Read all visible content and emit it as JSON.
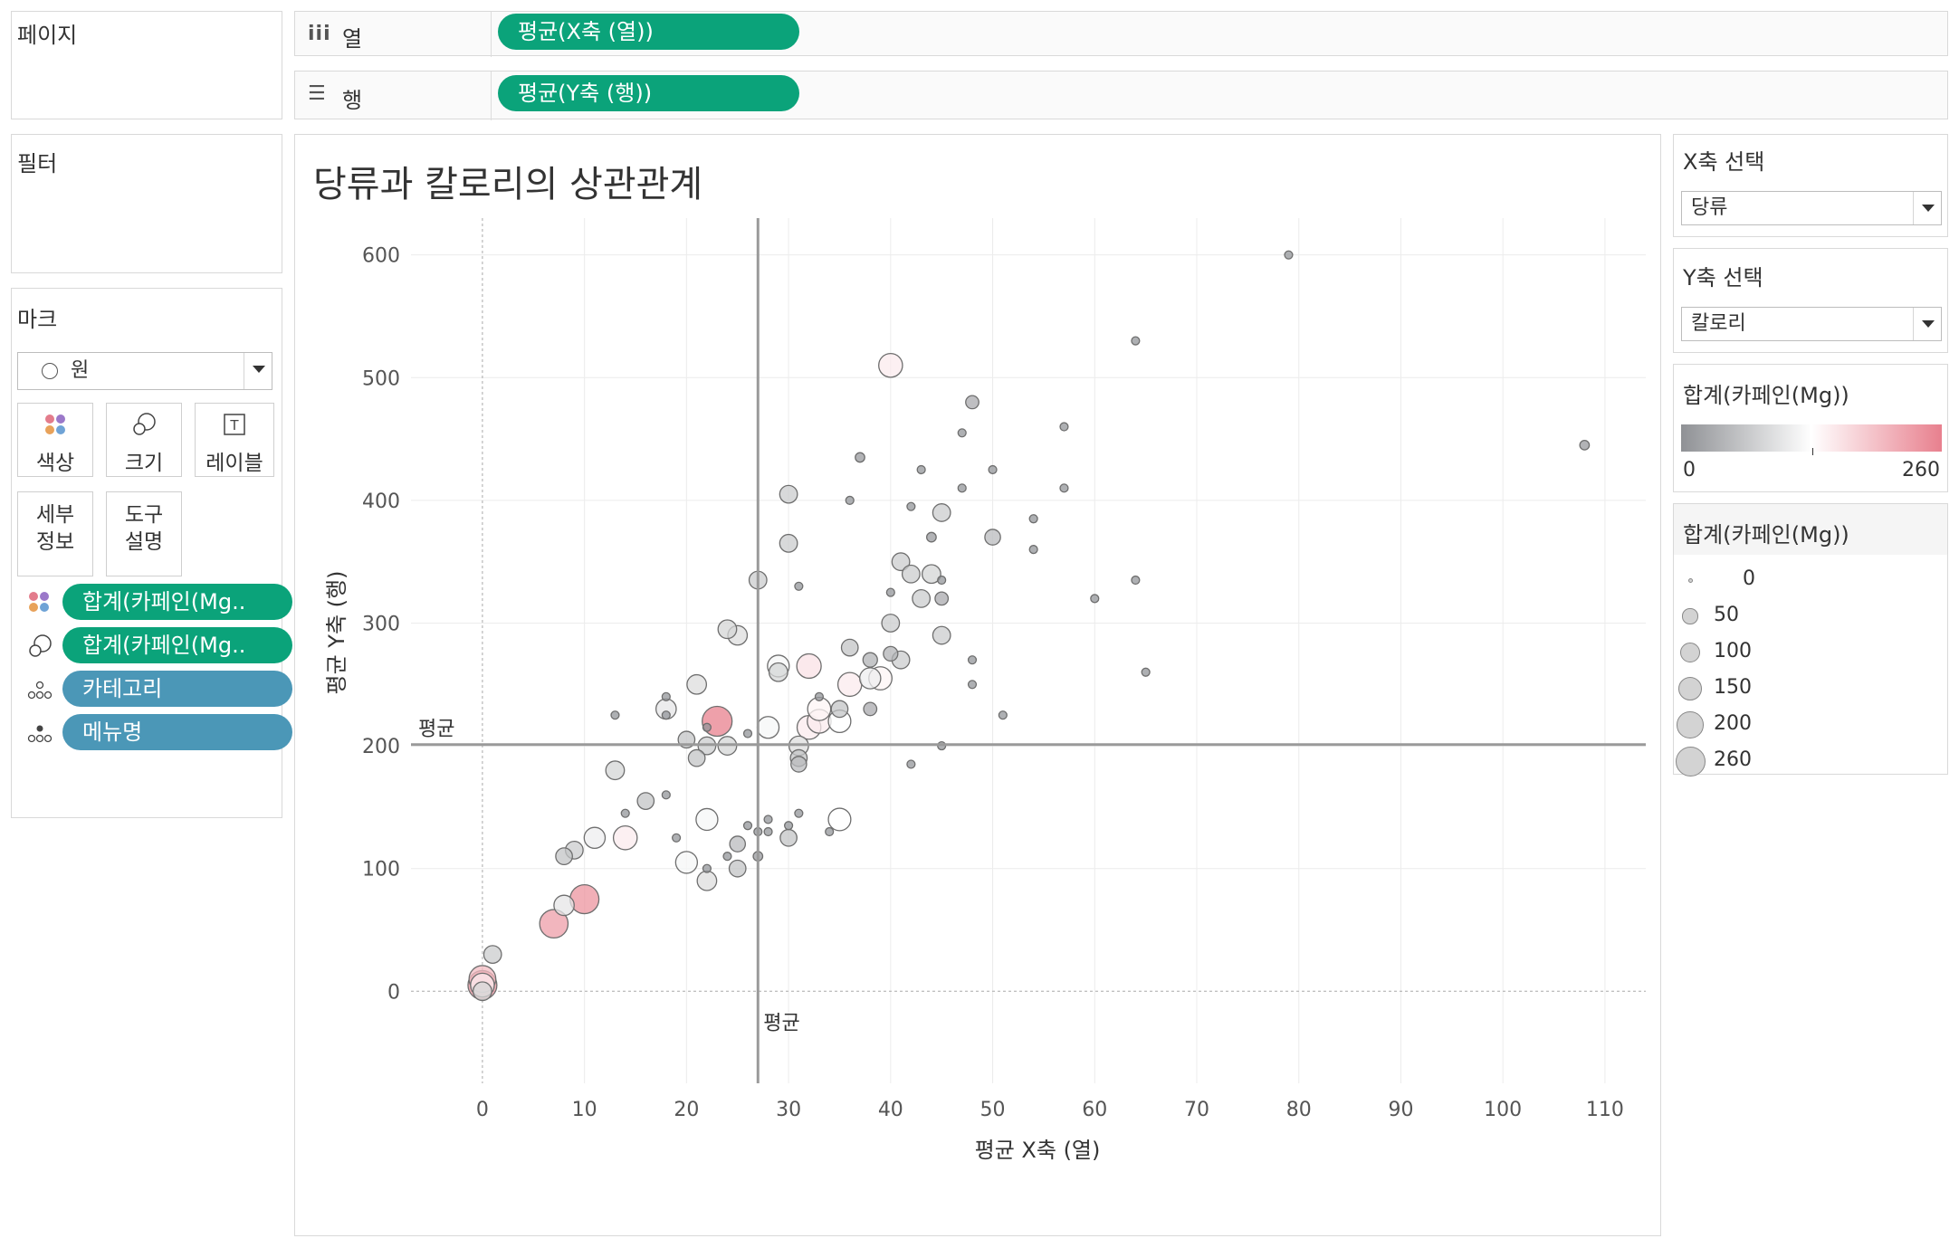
{
  "shelves": {
    "pages_label": "페이지",
    "columns": {
      "label": "열",
      "pill": "평균(X축 (열))"
    },
    "rows": {
      "label": "행",
      "pill": "평균(Y축 (행))"
    },
    "filters_label": "필터"
  },
  "marks": {
    "title": "마크",
    "type": "원",
    "buttons": [
      "색상",
      "크기",
      "레이블",
      "세부\n정보",
      "도구\n설명"
    ],
    "pills": [
      {
        "icon": "color-dots-icon",
        "label": "합계(카페인(Mg..",
        "color": "#0ba37a"
      },
      {
        "icon": "size-icon",
        "label": "합계(카페인(Mg..",
        "color": "#0ba37a"
      },
      {
        "icon": "detail-dots-icon",
        "label": "카테고리",
        "color": "#4b97b7"
      },
      {
        "icon": "detail-dots-icon",
        "label": "메뉴명",
        "color": "#4b97b7"
      }
    ]
  },
  "right_panel": {
    "x_select": {
      "title": "X축 선택",
      "value": "당류"
    },
    "y_select": {
      "title": "Y축 선택",
      "value": "칼로리"
    },
    "color_legend": {
      "title": "합계(카페인(Mg))",
      "min": "0",
      "max": "260",
      "colors": [
        "#8f9195",
        "#ffffff",
        "#e8808e"
      ]
    },
    "size_legend": {
      "title": "합계(카페인(Mg))",
      "items": [
        "0",
        "50",
        "100",
        "150",
        "200",
        "260"
      ]
    }
  },
  "chart_data": {
    "type": "scatter",
    "title": "당류과 칼로리의 상관관계",
    "xlabel": "평균 X축 (열)",
    "ylabel": "평균 Y축 (행)",
    "xlim": [
      -7,
      114
    ],
    "ylim": [
      -75,
      630
    ],
    "xticks": [
      "0",
      "10",
      "20",
      "30",
      "40",
      "50",
      "60",
      "70",
      "80",
      "90",
      "100",
      "110"
    ],
    "yticks": [
      "0",
      "100",
      "200",
      "300",
      "400",
      "500",
      "600"
    ],
    "grid": true,
    "reference_lines": {
      "x": 27,
      "y": 201,
      "label": "평균"
    },
    "points": [
      [
        0,
        5,
        240
      ],
      [
        0,
        10,
        200
      ],
      [
        0,
        5,
        150
      ],
      [
        0,
        0,
        80
      ],
      [
        1,
        30,
        70
      ],
      [
        7,
        55,
        230
      ],
      [
        8,
        70,
        100
      ],
      [
        8,
        110,
        60
      ],
      [
        9,
        115,
        70
      ],
      [
        10,
        75,
        240
      ],
      [
        11,
        125,
        110
      ],
      [
        13,
        225,
        5
      ],
      [
        13,
        180,
        80
      ],
      [
        14,
        125,
        150
      ],
      [
        14,
        145,
        5
      ],
      [
        16,
        155,
        60
      ],
      [
        18,
        160,
        5
      ],
      [
        18,
        230,
        100
      ],
      [
        18,
        240,
        5
      ],
      [
        18,
        225,
        5
      ],
      [
        19,
        125,
        5
      ],
      [
        20,
        105,
        120
      ],
      [
        20,
        205,
        60
      ],
      [
        21,
        250,
        90
      ],
      [
        21,
        190,
        60
      ],
      [
        22,
        200,
        70
      ],
      [
        22,
        215,
        5
      ],
      [
        23,
        220,
        260
      ],
      [
        22,
        140,
        120
      ],
      [
        22,
        90,
        90
      ],
      [
        22,
        100,
        5
      ],
      [
        24,
        295,
        80
      ],
      [
        24,
        110,
        5
      ],
      [
        24,
        200,
        80
      ],
      [
        25,
        290,
        90
      ],
      [
        25,
        100,
        60
      ],
      [
        25,
        120,
        50
      ],
      [
        26,
        135,
        5
      ],
      [
        26,
        210,
        5
      ],
      [
        27,
        110,
        10
      ],
      [
        27,
        130,
        5
      ],
      [
        27,
        335,
        70
      ],
      [
        28,
        215,
        120
      ],
      [
        28,
        140,
        5
      ],
      [
        28,
        130,
        5
      ],
      [
        29,
        265,
        120
      ],
      [
        29,
        260,
        80
      ],
      [
        30,
        125,
        60
      ],
      [
        30,
        135,
        5
      ],
      [
        30,
        365,
        70
      ],
      [
        30,
        405,
        70
      ],
      [
        31,
        330,
        5
      ],
      [
        31,
        200,
        90
      ],
      [
        31,
        190,
        60
      ],
      [
        31,
        185,
        50
      ],
      [
        31,
        145,
        5
      ],
      [
        32,
        265,
        160
      ],
      [
        32,
        215,
        150
      ],
      [
        33,
        230,
        140
      ],
      [
        33,
        220,
        150
      ],
      [
        33,
        240,
        5
      ],
      [
        34,
        130,
        5
      ],
      [
        35,
        140,
        130
      ],
      [
        35,
        220,
        130
      ],
      [
        35,
        230,
        60
      ],
      [
        36,
        280,
        60
      ],
      [
        36,
        250,
        150
      ],
      [
        36,
        400,
        5
      ],
      [
        37,
        435,
        10
      ],
      [
        38,
        255,
        110
      ],
      [
        38,
        270,
        40
      ],
      [
        38,
        230,
        30
      ],
      [
        39,
        255,
        140
      ],
      [
        40,
        300,
        70
      ],
      [
        40,
        275,
        40
      ],
      [
        40,
        510,
        150
      ],
      [
        40,
        325,
        5
      ],
      [
        41,
        270,
        70
      ],
      [
        41,
        350,
        70
      ],
      [
        42,
        340,
        70
      ],
      [
        42,
        395,
        5
      ],
      [
        42,
        185,
        5
      ],
      [
        43,
        320,
        70
      ],
      [
        43,
        425,
        5
      ],
      [
        44,
        370,
        10
      ],
      [
        44,
        340,
        80
      ],
      [
        45,
        335,
        5
      ],
      [
        45,
        290,
        70
      ],
      [
        45,
        320,
        30
      ],
      [
        45,
        390,
        70
      ],
      [
        45,
        200,
        5
      ],
      [
        47,
        410,
        5
      ],
      [
        47,
        455,
        5
      ],
      [
        48,
        480,
        30
      ],
      [
        48,
        270,
        5
      ],
      [
        48,
        250,
        5
      ],
      [
        50,
        370,
        50
      ],
      [
        50,
        425,
        5
      ],
      [
        51,
        225,
        5
      ],
      [
        54,
        385,
        5
      ],
      [
        54,
        360,
        5
      ],
      [
        57,
        460,
        5
      ],
      [
        57,
        410,
        5
      ],
      [
        60,
        320,
        5
      ],
      [
        64,
        530,
        5
      ],
      [
        64,
        335,
        5
      ],
      [
        65,
        260,
        5
      ],
      [
        79,
        600,
        5
      ],
      [
        108,
        445,
        10
      ]
    ]
  }
}
